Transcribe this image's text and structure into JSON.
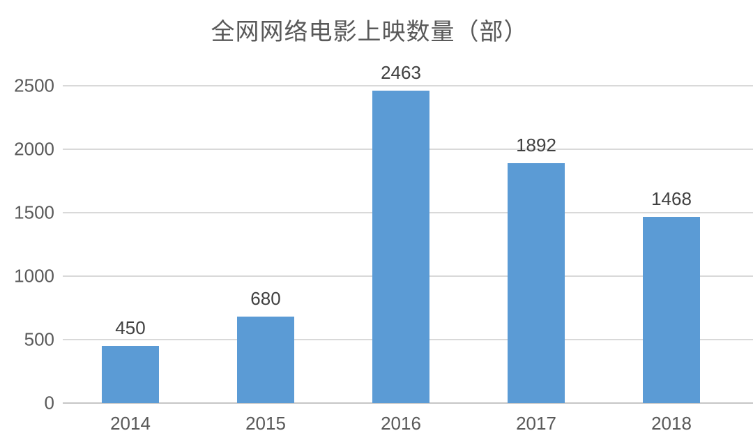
{
  "chart_data": {
    "type": "bar",
    "title": "全网网络电影上映数量（部）",
    "categories": [
      "2014",
      "2015",
      "2016",
      "2017",
      "2018"
    ],
    "values": [
      450,
      680,
      2463,
      1892,
      1468
    ],
    "value_labels": [
      "450",
      "680",
      "2463",
      "1892",
      "1468"
    ],
    "xlabel": "",
    "ylabel": "",
    "ylim": [
      0,
      2500
    ],
    "yticks": [
      0,
      500,
      1000,
      1500,
      2000,
      2500
    ],
    "grid": "horizontal",
    "legend_position": "none",
    "colors": {
      "bar": "#5b9bd5",
      "gridline": "#d9d9d9",
      "axis_line": "#c6c6c6",
      "title_text": "#595959",
      "axis_text": "#595959",
      "value_text": "#404040"
    }
  }
}
